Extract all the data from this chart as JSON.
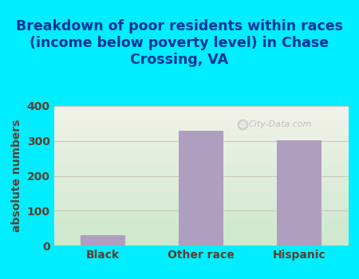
{
  "title": "Breakdown of poor residents within races\n(income below poverty level) in Chase\nCrossing, VA",
  "categories": [
    "Black",
    "Other race",
    "Hispanic"
  ],
  "values": [
    30,
    330,
    302
  ],
  "bar_color": "#b09ec0",
  "ylabel": "absolute numbers",
  "ylim": [
    0,
    400
  ],
  "yticks": [
    0,
    100,
    200,
    300,
    400
  ],
  "background_color": "#00eeff",
  "plot_bg_bottom_left": "#cce8cc",
  "plot_bg_top_right": "#f0f0e8",
  "title_color": "#003399",
  "axis_color": "#5a3a2a",
  "tick_color": "#5a4030",
  "grid_color": "#c8c8b8",
  "watermark": "City-Data.com",
  "title_fontsize": 12.5,
  "label_fontsize": 10,
  "tick_fontsize": 10
}
